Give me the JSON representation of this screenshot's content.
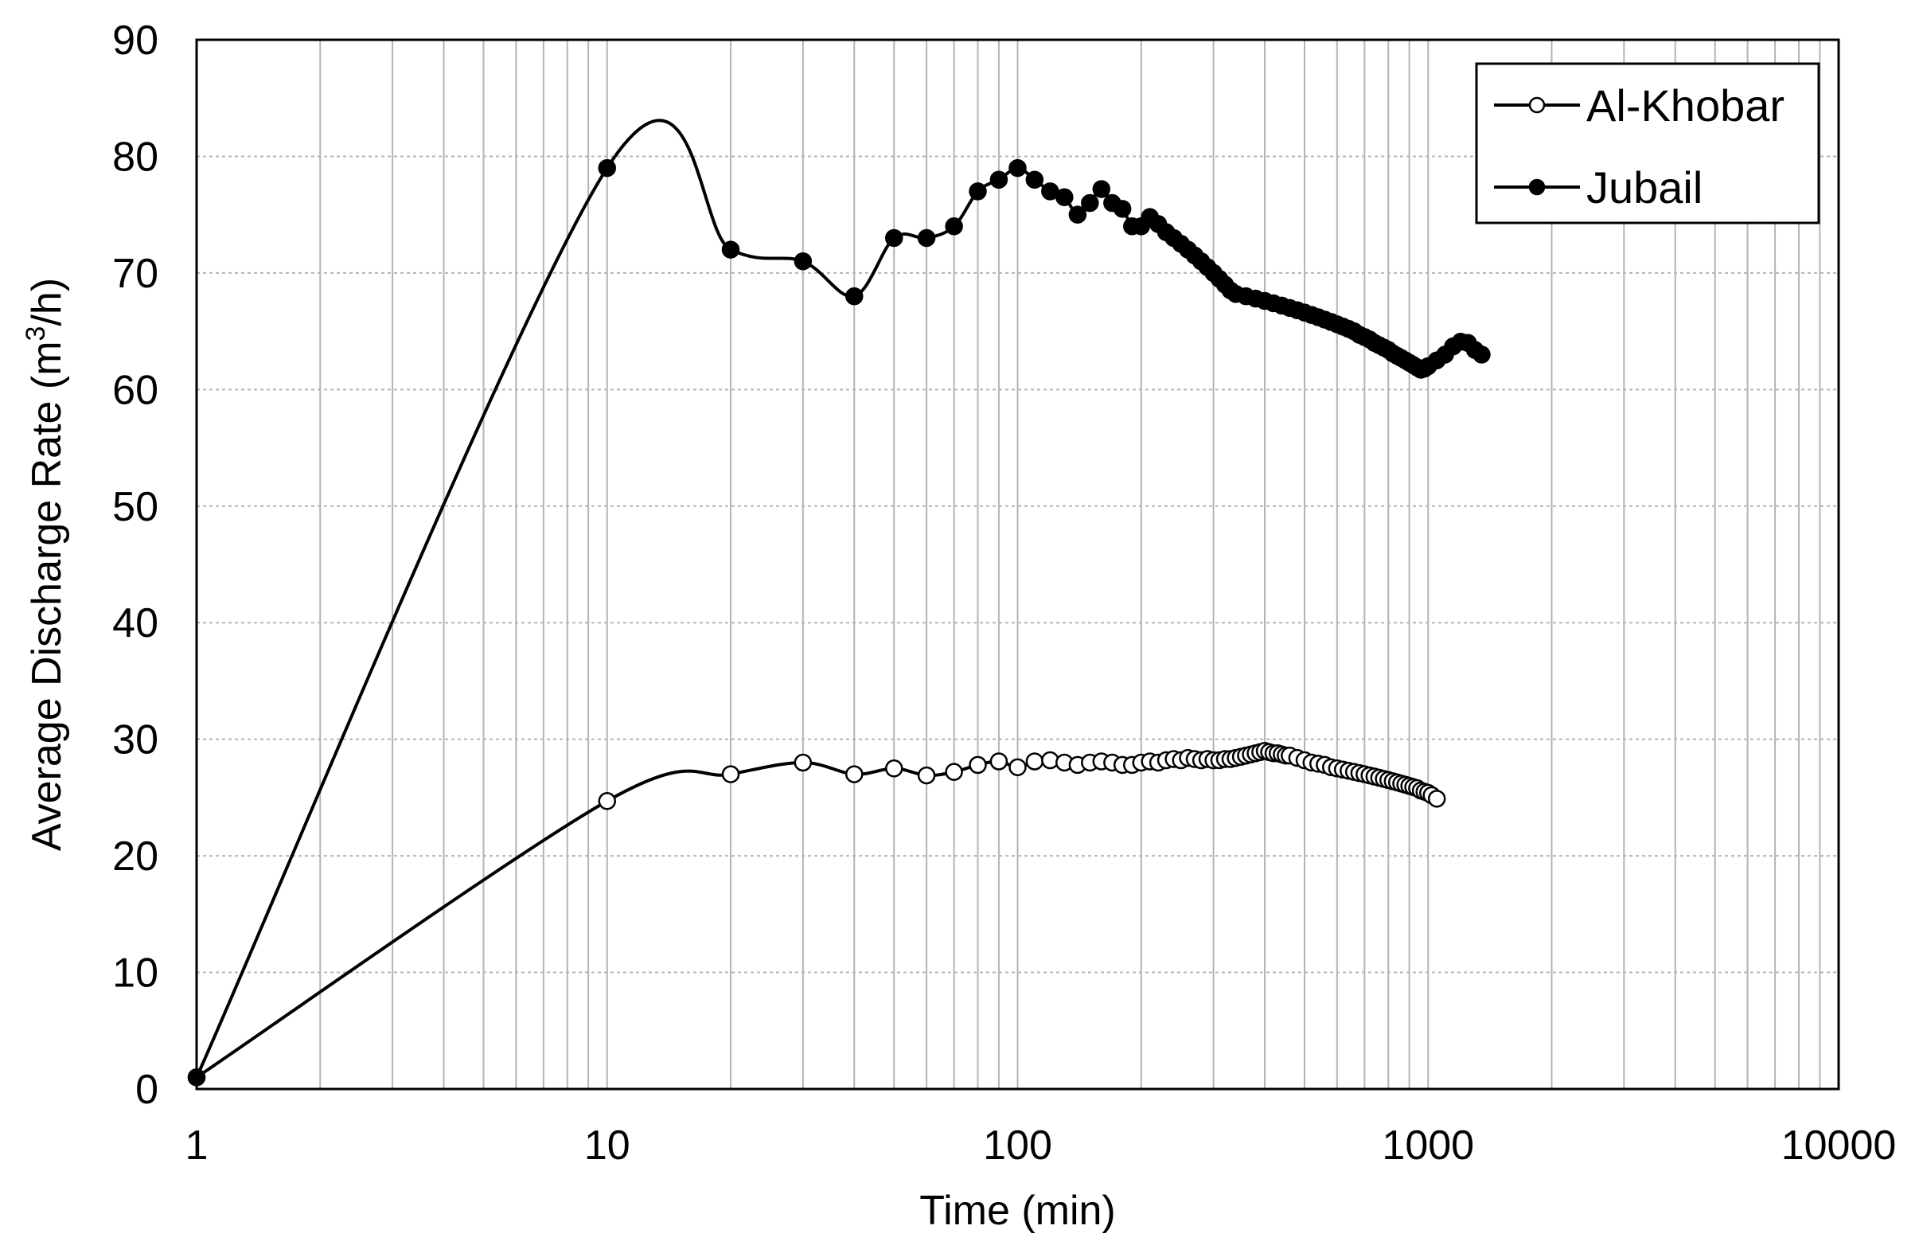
{
  "chart_data": {
    "type": "line",
    "xscale": "log",
    "xlim": [
      1,
      10000
    ],
    "ylim": [
      0,
      90
    ],
    "grid": true,
    "xlabel": "Time  (min)",
    "ylabel_main": "Average Discharge Rate (m",
    "ylabel_sup": "3",
    "ylabel_end": "/h)",
    "xticks": [
      1,
      10,
      100,
      1000,
      10000
    ],
    "xtick_labels": [
      "1",
      "10",
      "100",
      "1000",
      "10000"
    ],
    "yticks": [
      0,
      10,
      20,
      30,
      40,
      50,
      60,
      70,
      80,
      90
    ],
    "ytick_labels": [
      "0",
      "10",
      "20",
      "30",
      "40",
      "50",
      "60",
      "70",
      "80",
      "90"
    ],
    "legend_position": "top-right",
    "series": [
      {
        "name": "Al-Khobar",
        "marker": "open-circle",
        "x": [
          1,
          10,
          20,
          30,
          40,
          50,
          60,
          70,
          80,
          90,
          100,
          110,
          120,
          130,
          140,
          150,
          160,
          170,
          180,
          190,
          200,
          210,
          220,
          230,
          240,
          250,
          260,
          270,
          280,
          290,
          300,
          310,
          320,
          330,
          340,
          350,
          360,
          370,
          380,
          390,
          400,
          410,
          420,
          430,
          440,
          450,
          460,
          480,
          500,
          520,
          540,
          560,
          580,
          600,
          620,
          640,
          660,
          680,
          700,
          720,
          740,
          760,
          780,
          800,
          820,
          840,
          860,
          880,
          900,
          920,
          940,
          960,
          980,
          1000,
          1020,
          1050
        ],
        "y": [
          1,
          24.7,
          27,
          28,
          27,
          27.5,
          26.9,
          27.2,
          27.8,
          28.1,
          27.6,
          28.1,
          28.2,
          28.0,
          27.8,
          28.0,
          28.1,
          28.0,
          27.8,
          27.8,
          28.0,
          28.1,
          28.0,
          28.2,
          28.3,
          28.2,
          28.4,
          28.3,
          28.2,
          28.3,
          28.2,
          28.2,
          28.3,
          28.3,
          28.4,
          28.5,
          28.6,
          28.7,
          28.8,
          28.9,
          29.0,
          28.9,
          28.8,
          28.8,
          28.7,
          28.6,
          28.6,
          28.4,
          28.2,
          28.0,
          27.9,
          27.8,
          27.6,
          27.5,
          27.4,
          27.3,
          27.2,
          27.1,
          27.0,
          26.9,
          26.8,
          26.7,
          26.6,
          26.5,
          26.4,
          26.3,
          26.2,
          26.1,
          26.0,
          25.9,
          25.8,
          25.6,
          25.5,
          25.4,
          25.2,
          24.9
        ]
      },
      {
        "name": "Jubail",
        "marker": "filled-circle",
        "x": [
          1,
          10,
          20,
          30,
          40,
          50,
          60,
          70,
          80,
          90,
          100,
          110,
          120,
          130,
          140,
          150,
          160,
          170,
          180,
          190,
          200,
          210,
          220,
          230,
          240,
          250,
          260,
          270,
          280,
          290,
          300,
          310,
          320,
          330,
          340,
          360,
          380,
          400,
          420,
          440,
          460,
          480,
          500,
          520,
          540,
          560,
          580,
          600,
          620,
          640,
          660,
          680,
          700,
          720,
          740,
          760,
          780,
          800,
          820,
          840,
          860,
          880,
          900,
          920,
          940,
          960,
          980,
          1000,
          1050,
          1100,
          1150,
          1200,
          1250,
          1300,
          1350
        ],
        "y": [
          1,
          79,
          72,
          71,
          68,
          73,
          73,
          74,
          77,
          78,
          79,
          78,
          77,
          76.5,
          75,
          76,
          77.2,
          76,
          75.5,
          74,
          74,
          74.8,
          74.2,
          73.5,
          73,
          72.5,
          72,
          71.5,
          71,
          70.5,
          70,
          69.5,
          69,
          68.5,
          68.2,
          68,
          67.8,
          67.6,
          67.4,
          67.2,
          67,
          66.8,
          66.6,
          66.4,
          66.2,
          66,
          65.8,
          65.6,
          65.4,
          65.2,
          65,
          64.7,
          64.5,
          64.3,
          64,
          63.8,
          63.6,
          63.4,
          63.1,
          62.9,
          62.7,
          62.5,
          62.3,
          62.1,
          61.9,
          61.7,
          61.8,
          62,
          62.5,
          63,
          63.7,
          64.1,
          64,
          63.4,
          63
        ]
      }
    ]
  }
}
